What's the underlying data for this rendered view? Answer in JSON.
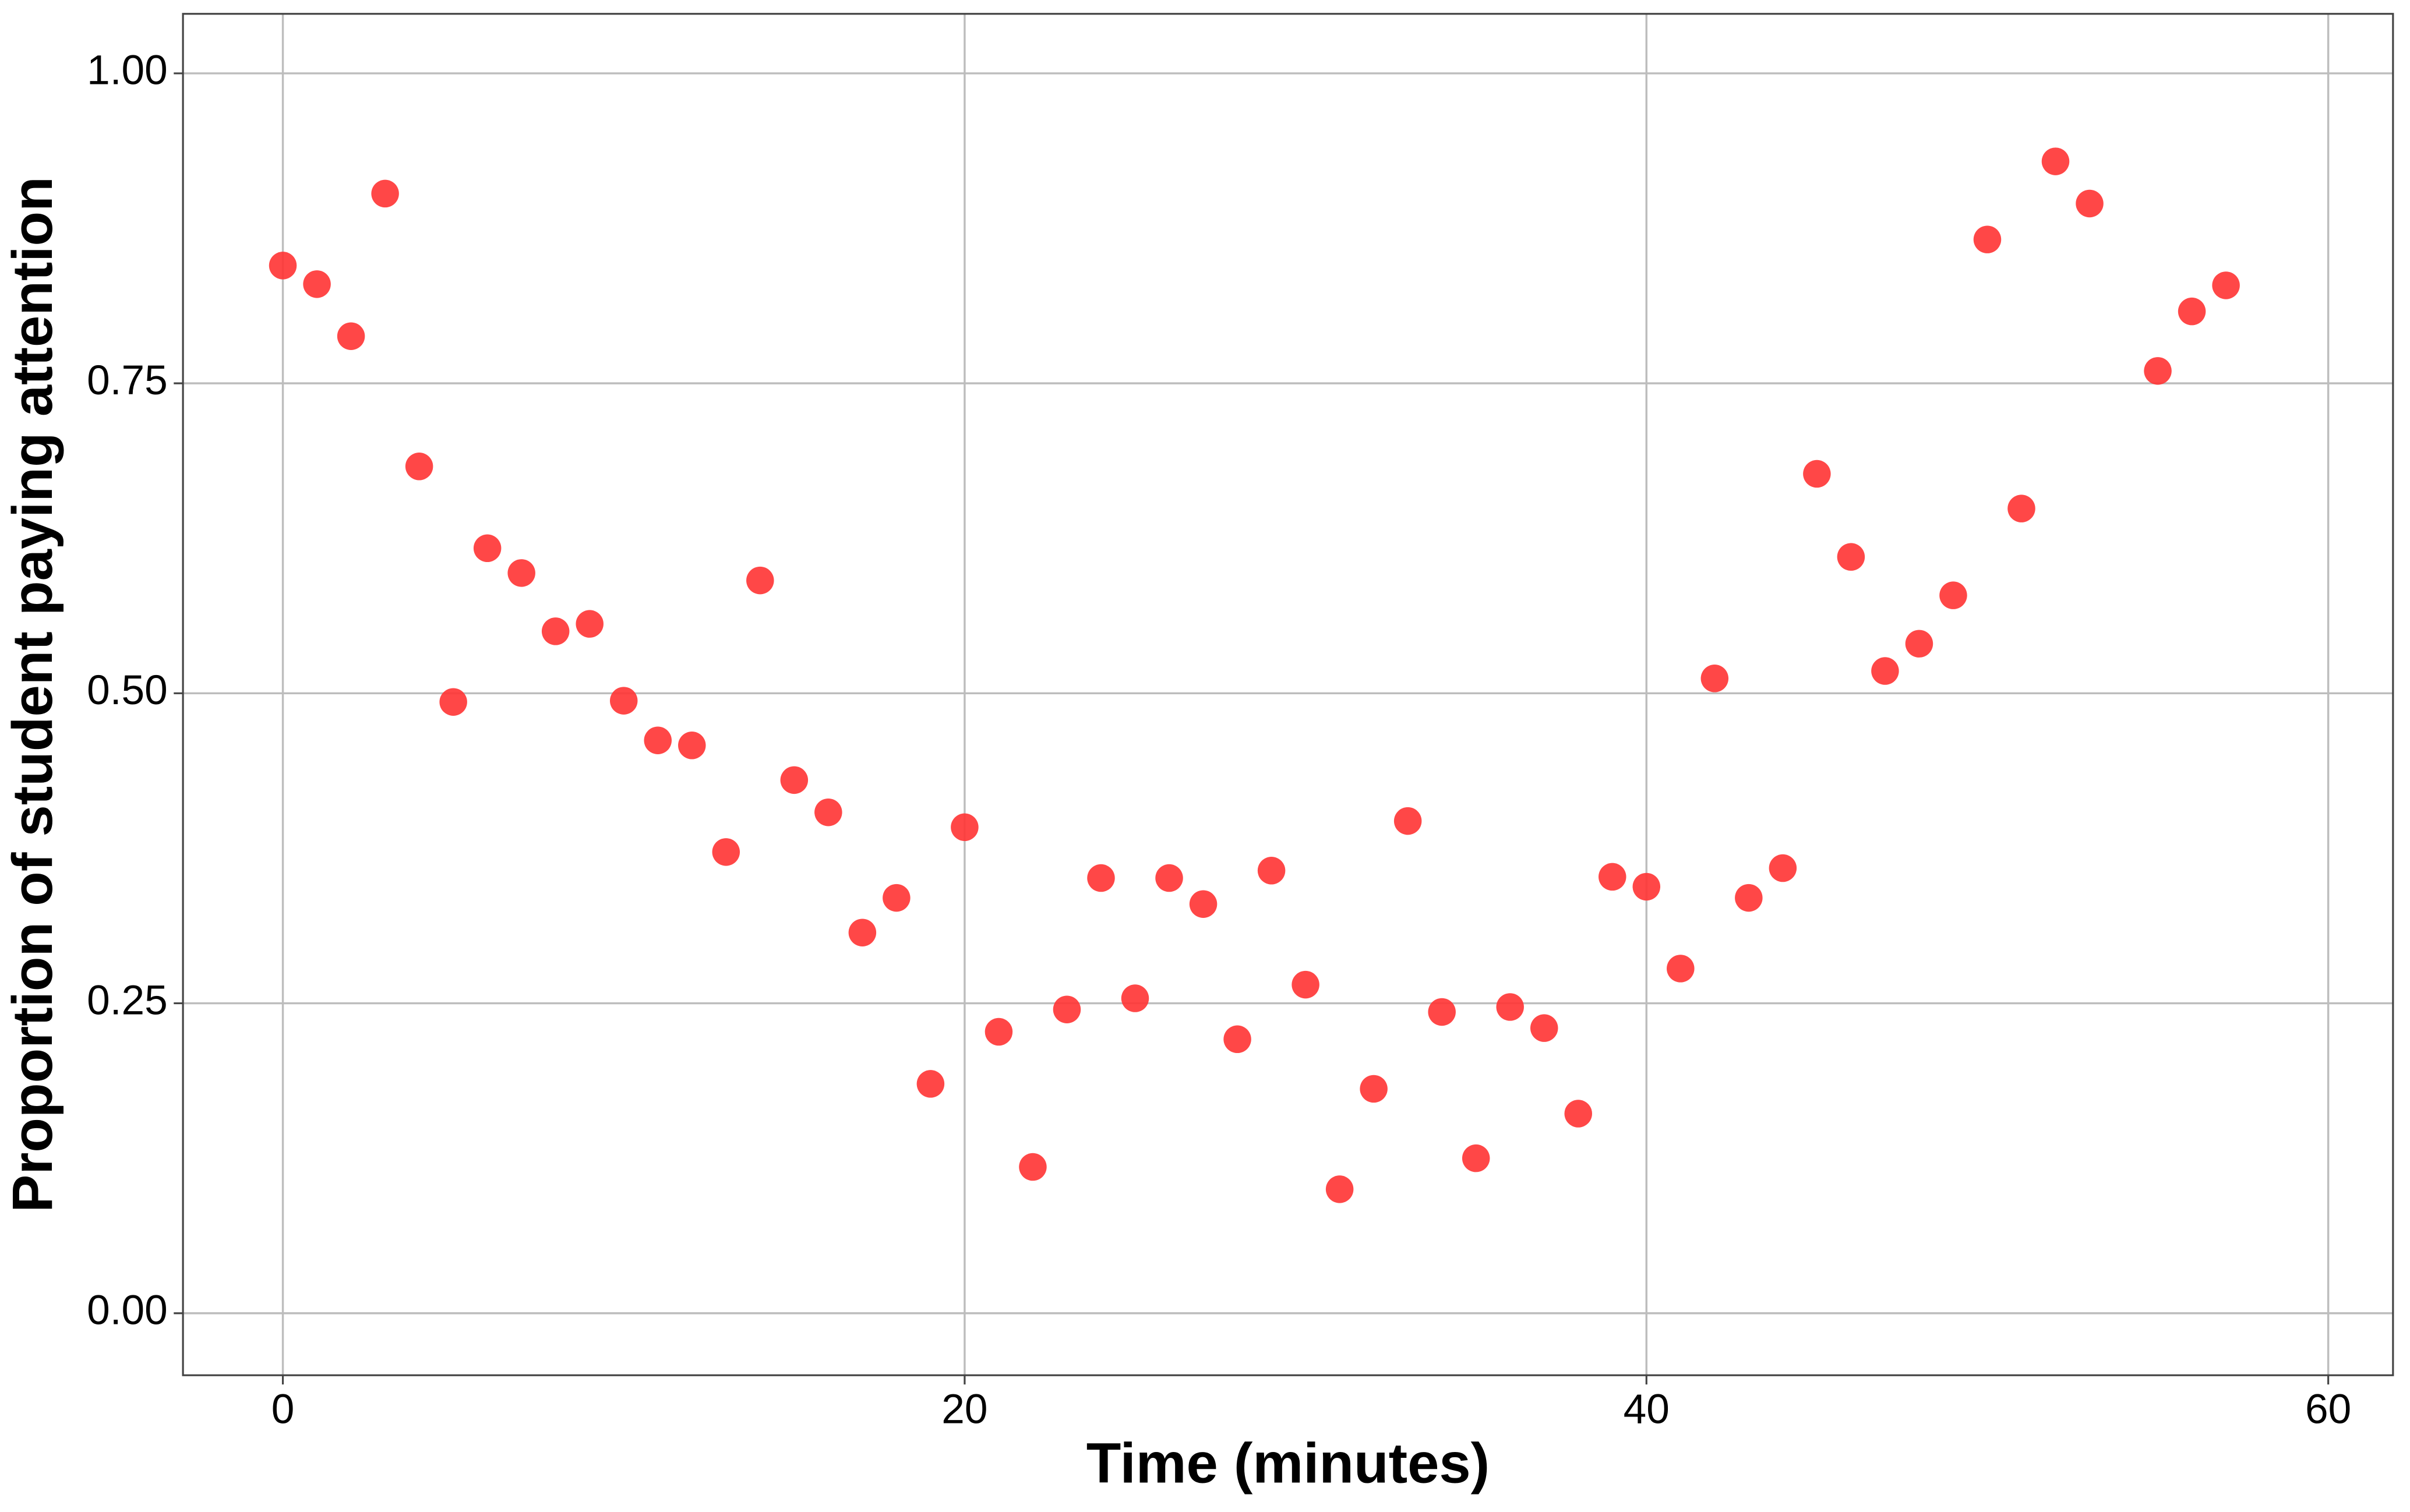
{
  "chart_data": {
    "type": "scatter",
    "xlabel": "Time (minutes)",
    "ylabel": "Proportion of student paying attention",
    "color": "#ff3333",
    "x": [
      0,
      1,
      2,
      3,
      4,
      5,
      6,
      7,
      8,
      9,
      10,
      11,
      12,
      13,
      14,
      15,
      16,
      17,
      18,
      19,
      20,
      21,
      22,
      23,
      24,
      25,
      26,
      27,
      28,
      29,
      30,
      31,
      32,
      33,
      34,
      35,
      36,
      37,
      38,
      39,
      40,
      41,
      42,
      43,
      44,
      45,
      46,
      47,
      48,
      49,
      50,
      51,
      52,
      53,
      55,
      56,
      57
    ],
    "y": [
      0.845,
      0.83,
      0.788,
      0.903,
      0.683,
      0.493,
      0.617,
      0.597,
      0.55,
      0.556,
      0.494,
      0.462,
      0.458,
      0.372,
      0.591,
      0.43,
      0.404,
      0.307,
      0.335,
      0.185,
      0.392,
      0.227,
      0.118,
      0.245,
      0.351,
      0.254,
      0.351,
      0.33,
      0.221,
      0.357,
      0.265,
      0.1,
      0.181,
      0.397,
      0.243,
      0.125,
      0.247,
      0.23,
      0.161,
      0.352,
      0.344,
      0.278,
      0.512,
      0.335,
      0.359,
      0.677,
      0.61,
      0.518,
      0.54,
      0.579,
      0.866,
      0.649,
      0.929,
      0.895,
      0.76,
      0.808,
      0.829
    ],
    "xlim": [
      -2.93,
      61.9
    ],
    "ylim": [
      -0.05,
      1.048
    ],
    "xticks": [
      0,
      20,
      40,
      60
    ],
    "yticks": [
      {
        "value": 0,
        "label": "0.00"
      },
      {
        "value": 0.25,
        "label": "0.25"
      },
      {
        "value": 0.5,
        "label": "0.50"
      },
      {
        "value": 0.75,
        "label": "0.75"
      },
      {
        "value": 1,
        "label": "1.00"
      }
    ],
    "grid": true
  }
}
